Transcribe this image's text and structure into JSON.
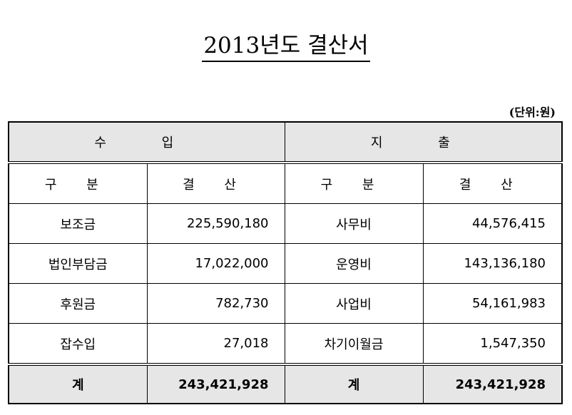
{
  "document": {
    "title": "2013년도 결산서",
    "unit": "(단위:원)"
  },
  "table": {
    "income_header": "수  입",
    "expense_header": "지  출",
    "col_category": "구 분",
    "col_settlement": "결 산",
    "rows": [
      {
        "income_label": "보조금",
        "income_amount": "225,590,180",
        "expense_label": "사무비",
        "expense_amount": "44,576,415"
      },
      {
        "income_label": "법인부담금",
        "income_amount": "17,022,000",
        "expense_label": "운영비",
        "expense_amount": "143,136,180"
      },
      {
        "income_label": "후원금",
        "income_amount": "782,730",
        "expense_label": "사업비",
        "expense_amount": "54,161,983"
      },
      {
        "income_label": "잡수입",
        "income_amount": "27,018",
        "expense_label": "차기이월금",
        "expense_amount": "1,547,350"
      }
    ],
    "total": {
      "income_label": "계",
      "income_amount": "243,421,928",
      "expense_label": "계",
      "expense_amount": "243,421,928"
    }
  }
}
